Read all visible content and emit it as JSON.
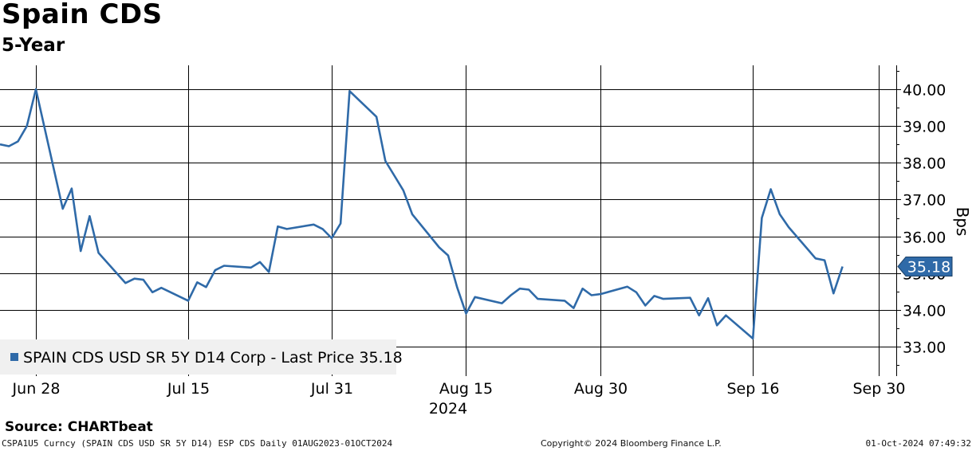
{
  "header": {
    "title": "Spain CDS",
    "subtitle": "5-Year"
  },
  "source": "Source: CHARTbeat",
  "footer": {
    "left": "CSPA1U5 Curncy (SPAIN CDS USD SR 5Y D14) ESP CDS  Daily 01AUG2023-01OCT2024",
    "middle": "Copyright© 2024 Bloomberg Finance L.P.",
    "right": "01-Oct-2024 07:49:32"
  },
  "colors": {
    "line": "#2f6aa8",
    "grid": "#000000",
    "legend_bg": "#f0f0f0",
    "last_label_bg": "#2f6aa8"
  },
  "chart_data": {
    "type": "line",
    "title": "Spain CDS",
    "subtitle": "5-Year",
    "ylabel": "Bps",
    "ylim": [
      32.2,
      40.65
    ],
    "yticks": [
      33,
      34,
      35,
      36,
      37,
      38,
      39,
      40
    ],
    "ytick_labels": [
      "33.00",
      "34.00",
      "35.00",
      "36.00",
      "37.00",
      "38.00",
      "39.00",
      "40.00"
    ],
    "xlim": [
      "2024-06-24",
      "2024-10-02"
    ],
    "xticks": [
      "2024-06-28",
      "2024-07-15",
      "2024-07-31",
      "2024-08-15",
      "2024-08-30",
      "2024-09-16",
      "2024-09-30"
    ],
    "xtick_labels": [
      "Jun 28",
      "Jul 15",
      "Jul 31",
      "Aug 15",
      "Aug 30",
      "Sep 16",
      "Sep 30"
    ],
    "year_label": "2024",
    "grid": true,
    "legend": {
      "placement": "bottom-left",
      "text": "SPAIN CDS USD SR 5Y D14 Corp - Last Price 35.18"
    },
    "last_value_label": "35.18",
    "series": [
      {
        "name": "SPAIN CDS USD SR 5Y D14 Corp - Last Price",
        "x": [
          "2024-06-24",
          "2024-06-25",
          "2024-06-26",
          "2024-06-27",
          "2024-06-28",
          "2024-07-01",
          "2024-07-02",
          "2024-07-03",
          "2024-07-04",
          "2024-07-05",
          "2024-07-08",
          "2024-07-09",
          "2024-07-10",
          "2024-07-11",
          "2024-07-12",
          "2024-07-15",
          "2024-07-16",
          "2024-07-17",
          "2024-07-18",
          "2024-07-19",
          "2024-07-22",
          "2024-07-23",
          "2024-07-24",
          "2024-07-25",
          "2024-07-26",
          "2024-07-29",
          "2024-07-30",
          "2024-07-31",
          "2024-08-01",
          "2024-08-02",
          "2024-08-05",
          "2024-08-06",
          "2024-08-07",
          "2024-08-08",
          "2024-08-09",
          "2024-08-12",
          "2024-08-13",
          "2024-08-14",
          "2024-08-15",
          "2024-08-16",
          "2024-08-19",
          "2024-08-20",
          "2024-08-21",
          "2024-08-22",
          "2024-08-23",
          "2024-08-26",
          "2024-08-27",
          "2024-08-28",
          "2024-08-29",
          "2024-08-30",
          "2024-09-02",
          "2024-09-03",
          "2024-09-04",
          "2024-09-05",
          "2024-09-06",
          "2024-09-09",
          "2024-09-10",
          "2024-09-11",
          "2024-09-12",
          "2024-09-13",
          "2024-09-16",
          "2024-09-17",
          "2024-09-18",
          "2024-09-19",
          "2024-09-20",
          "2024-09-23",
          "2024-09-24",
          "2024-09-25",
          "2024-09-26",
          "2024-09-27",
          "2024-09-30",
          "2024-10-01"
        ],
        "values": [
          38.5,
          38.45,
          38.58,
          39.0,
          40.0,
          36.75,
          37.3,
          35.6,
          36.55,
          35.55,
          34.73,
          34.85,
          34.82,
          34.48,
          34.6,
          34.25,
          34.75,
          34.62,
          35.08,
          35.2,
          35.15,
          35.3,
          35.03,
          36.27,
          36.2,
          36.32,
          36.2,
          35.95,
          36.35,
          39.95,
          39.25,
          38.05,
          37.65,
          37.25,
          36.6,
          35.7,
          35.48,
          34.62,
          33.9,
          34.35,
          34.18,
          34.4,
          34.58,
          34.55,
          34.3,
          34.25,
          34.05,
          34.58,
          34.4,
          34.43,
          34.63,
          34.48,
          34.12,
          34.38,
          34.3,
          34.33,
          33.85,
          34.32,
          33.58,
          33.85,
          33.22,
          36.5,
          37.28,
          36.6,
          36.25,
          35.4,
          35.35,
          34.45,
          35.18,
          null,
          null,
          null
        ]
      }
    ]
  }
}
